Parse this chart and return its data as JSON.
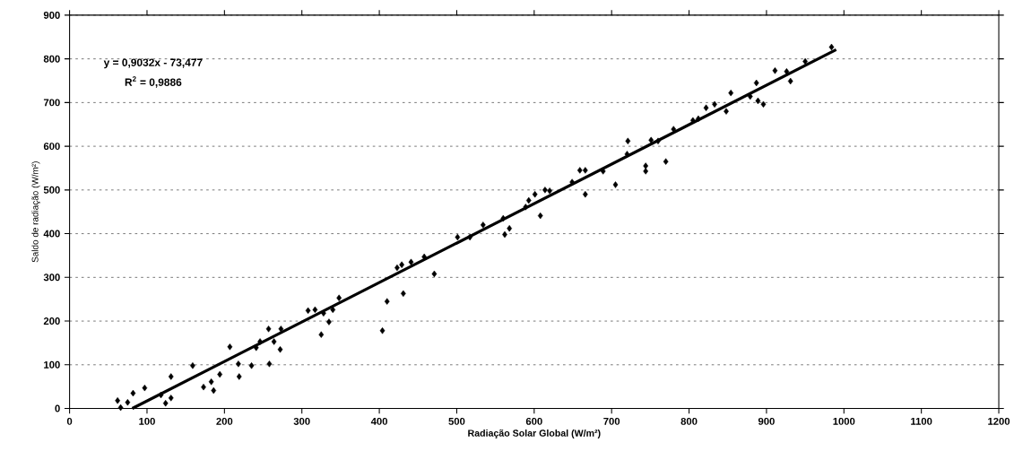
{
  "chart_data": {
    "type": "scatter",
    "xlabel": "Radiação Solar Global (W/m²)",
    "ylabel": "Saldo de radiação (W/m²)",
    "xlim": [
      0,
      1200
    ],
    "ylim": [
      0,
      900
    ],
    "xticks": [
      0,
      100,
      200,
      300,
      400,
      500,
      600,
      700,
      800,
      900,
      1000,
      1100,
      1200
    ],
    "yticks": [
      0,
      100,
      200,
      300,
      400,
      500,
      600,
      700,
      800,
      900
    ],
    "grid": "y",
    "annotations": [
      "y = 0,9032x - 73,477",
      "R$^{2}$ = 0,9886"
    ],
    "series": [
      {
        "color": "#000000",
        "marker": "diamond",
        "x": [
          62,
          66,
          75,
          82,
          97,
          118,
          124,
          131,
          131,
          159,
          173,
          183,
          186,
          194,
          207,
          218,
          219,
          235,
          241,
          246,
          257,
          258,
          264,
          272,
          273,
          308,
          317,
          325,
          328,
          335,
          340,
          348,
          404,
          410,
          423,
          429,
          431,
          441,
          458,
          471,
          501,
          517,
          534,
          560,
          568,
          562,
          589,
          593,
          601,
          608,
          614,
          620,
          649,
          659,
          666,
          666,
          689,
          705,
          720,
          721,
          744,
          744,
          751,
          760,
          770,
          780,
          805,
          812,
          822,
          833,
          848,
          854,
          879,
          887,
          889,
          896,
          911,
          926,
          931,
          950,
          984
        ],
        "values": [
          18,
          2,
          14,
          35,
          47,
          31,
          12,
          24,
          73,
          98,
          49,
          61,
          41,
          78,
          141,
          102,
          73,
          98,
          139,
          153,
          182,
          102,
          153,
          135,
          182,
          224,
          226,
          169,
          218,
          198,
          226,
          253,
          178,
          245,
          322,
          329,
          263,
          335,
          347,
          308,
          392,
          392,
          420,
          435,
          412,
          398,
          461,
          476,
          490,
          441,
          500,
          498,
          518,
          545,
          545,
          490,
          543,
          512,
          582,
          612,
          555,
          543,
          614,
          612,
          565,
          639,
          659,
          663,
          688,
          696,
          680,
          722,
          714,
          745,
          704,
          696,
          773,
          771,
          749,
          794,
          827
        ]
      },
      {
        "type": "line",
        "color": "#000000",
        "marker": "none",
        "x": [
          81,
          990
        ],
        "values": [
          0,
          821
        ]
      }
    ]
  }
}
